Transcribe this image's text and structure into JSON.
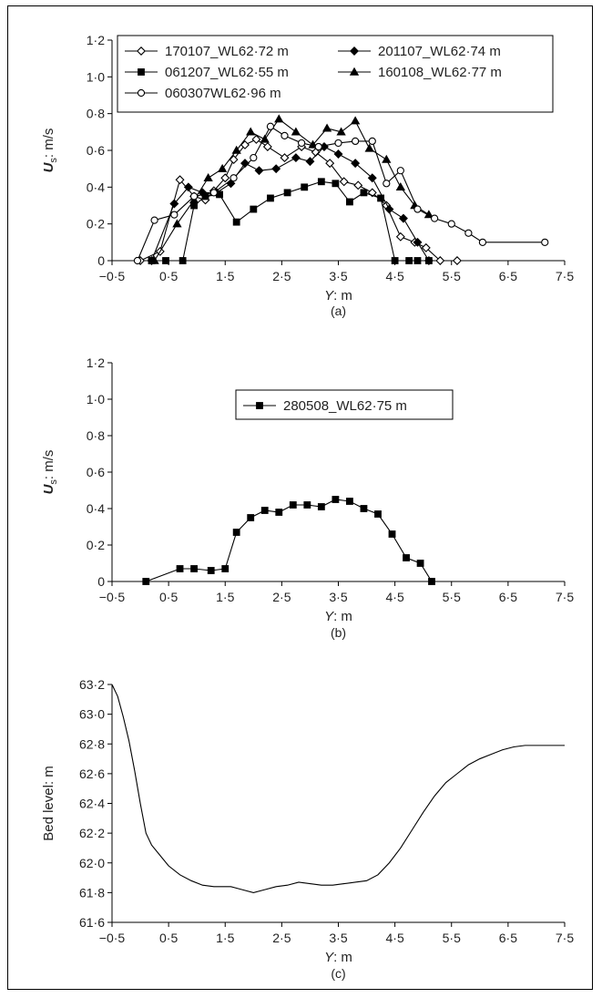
{
  "panels": [
    {
      "caption": "(a)",
      "xlabel": "Y: m",
      "ylabel": "U_s: m/s",
      "y_ticks": [
        "0",
        "0·2",
        "0·4",
        "0·6",
        "0·8",
        "1·0",
        "1·2"
      ],
      "x_ticks": [
        "−0·5",
        "0·5",
        "1·5",
        "2·5",
        "3·5",
        "4·5",
        "5·5",
        "6·5",
        "7·5"
      ]
    },
    {
      "caption": "(b)",
      "xlabel": "Y: m",
      "ylabel": "U_s: m/s",
      "y_ticks": [
        "0",
        "0·2",
        "0·4",
        "0·6",
        "0·8",
        "1·0",
        "1·2"
      ],
      "x_ticks": [
        "−0·5",
        "0·5",
        "1·5",
        "2·5",
        "3·5",
        "4·5",
        "5·5",
        "6·5",
        "7·5"
      ]
    },
    {
      "caption": "(c)",
      "xlabel": "Y: m",
      "ylabel": "Bed level: m",
      "y_ticks": [
        "61·6",
        "61·8",
        "62·0",
        "62·2",
        "62·4",
        "62·6",
        "62·8",
        "63·0",
        "63·2"
      ],
      "x_ticks": [
        "−0·5",
        "0·5",
        "1·5",
        "2·5",
        "3·5",
        "4·5",
        "5·5",
        "6·5",
        "7·5"
      ]
    }
  ],
  "chart_data": [
    {
      "type": "line",
      "xlim": [
        -0.5,
        7.5
      ],
      "ylim": [
        0,
        1.2
      ],
      "legend_position": "top",
      "series": [
        {
          "name": "170107_WL62·72 m",
          "marker": "diamond-open",
          "color": "#000000",
          "x": [
            0.0,
            0.35,
            0.7,
            0.95,
            1.15,
            1.3,
            1.5,
            1.65,
            1.85,
            2.05,
            2.25,
            2.55,
            2.85,
            3.1,
            3.35,
            3.6,
            3.85,
            4.1,
            4.35,
            4.6,
            4.85,
            5.05,
            5.3,
            5.6
          ],
          "y": [
            0.0,
            0.05,
            0.44,
            0.35,
            0.33,
            0.38,
            0.45,
            0.55,
            0.63,
            0.66,
            0.62,
            0.56,
            0.62,
            0.59,
            0.53,
            0.43,
            0.41,
            0.37,
            0.3,
            0.13,
            0.1,
            0.07,
            0.0,
            0.0
          ]
        },
        {
          "name": "201107_WL62·74 m",
          "marker": "diamond-filled",
          "color": "#000000",
          "x": [
            0.2,
            0.6,
            0.85,
            1.1,
            1.35,
            1.6,
            1.85,
            2.1,
            2.4,
            2.75,
            3.0,
            3.25,
            3.5,
            3.8,
            4.1,
            4.4,
            4.65,
            4.9,
            5.1
          ],
          "y": [
            0.0,
            0.31,
            0.4,
            0.37,
            0.37,
            0.42,
            0.53,
            0.49,
            0.5,
            0.56,
            0.54,
            0.62,
            0.58,
            0.53,
            0.45,
            0.28,
            0.23,
            0.1,
            0.0
          ]
        },
        {
          "name": "061207_WL62·55 m",
          "marker": "square-filled",
          "color": "#000000",
          "x": [
            0.2,
            0.45,
            0.75,
            0.95,
            1.15,
            1.4,
            1.7,
            2.0,
            2.3,
            2.6,
            2.9,
            3.2,
            3.45,
            3.7,
            3.95,
            4.25,
            4.5,
            4.75,
            4.9,
            5.1
          ],
          "y": [
            0.0,
            0.0,
            0.0,
            0.3,
            0.35,
            0.36,
            0.21,
            0.28,
            0.34,
            0.37,
            0.4,
            0.43,
            0.42,
            0.32,
            0.37,
            0.34,
            0.0,
            0.0,
            0.0,
            0.0
          ]
        },
        {
          "name": "160108_WL62·77 m",
          "marker": "triangle-filled",
          "color": "#000000",
          "x": [
            0.25,
            0.65,
            0.95,
            1.2,
            1.45,
            1.7,
            1.95,
            2.2,
            2.45,
            2.75,
            3.05,
            3.3,
            3.55,
            3.8,
            4.05,
            4.35,
            4.6,
            4.85,
            5.1
          ],
          "y": [
            0.0,
            0.2,
            0.33,
            0.45,
            0.5,
            0.6,
            0.7,
            0.66,
            0.77,
            0.7,
            0.63,
            0.72,
            0.7,
            0.76,
            0.61,
            0.55,
            0.4,
            0.3,
            0.25
          ]
        },
        {
          "name": "060307WL62·96 m",
          "marker": "circle-open",
          "color": "#000000",
          "x": [
            -0.05,
            0.25,
            0.6,
            0.95,
            1.3,
            1.65,
            2.0,
            2.3,
            2.55,
            2.85,
            3.15,
            3.5,
            3.8,
            4.1,
            4.35,
            4.6,
            4.9,
            5.2,
            5.5,
            5.8,
            6.05,
            7.15
          ],
          "y": [
            0.0,
            0.22,
            0.25,
            0.35,
            0.37,
            0.45,
            0.56,
            0.73,
            0.68,
            0.64,
            0.62,
            0.64,
            0.65,
            0.65,
            0.42,
            0.49,
            0.28,
            0.23,
            0.2,
            0.15,
            0.1,
            0.1
          ]
        }
      ]
    },
    {
      "type": "line",
      "xlim": [
        -0.5,
        7.5
      ],
      "ylim": [
        0,
        1.2
      ],
      "legend_position": "top",
      "series": [
        {
          "name": "280508_WL62·75 m",
          "marker": "square-filled",
          "color": "#000000",
          "x": [
            0.1,
            0.7,
            0.95,
            1.25,
            1.5,
            1.7,
            1.95,
            2.2,
            2.45,
            2.7,
            2.95,
            3.2,
            3.45,
            3.7,
            3.95,
            4.2,
            4.45,
            4.7,
            4.95,
            5.15
          ],
          "y": [
            0.0,
            0.07,
            0.07,
            0.06,
            0.07,
            0.27,
            0.35,
            0.39,
            0.38,
            0.42,
            0.42,
            0.41,
            0.45,
            0.44,
            0.4,
            0.37,
            0.26,
            0.13,
            0.1,
            0.0
          ]
        }
      ]
    },
    {
      "type": "line",
      "xlim": [
        -0.5,
        7.5
      ],
      "ylim": [
        61.6,
        63.2
      ],
      "series": [
        {
          "name": "",
          "marker": "none",
          "color": "#000000",
          "x": [
            -0.5,
            -0.4,
            -0.3,
            -0.2,
            -0.1,
            0.0,
            0.1,
            0.2,
            0.35,
            0.5,
            0.7,
            0.9,
            1.1,
            1.3,
            1.6,
            1.8,
            2.0,
            2.2,
            2.4,
            2.6,
            2.8,
            3.0,
            3.2,
            3.4,
            3.6,
            3.8,
            4.0,
            4.2,
            4.4,
            4.6,
            4.8,
            5.0,
            5.2,
            5.4,
            5.6,
            5.8,
            6.0,
            6.2,
            6.4,
            6.6,
            6.8,
            7.0,
            7.5
          ],
          "y": [
            63.2,
            63.12,
            62.98,
            62.82,
            62.62,
            62.4,
            62.2,
            62.12,
            62.05,
            61.98,
            61.92,
            61.88,
            61.85,
            61.84,
            61.84,
            61.82,
            61.8,
            61.82,
            61.84,
            61.85,
            61.87,
            61.86,
            61.85,
            61.85,
            61.86,
            61.87,
            61.88,
            61.92,
            62.0,
            62.1,
            62.22,
            62.34,
            62.45,
            62.54,
            62.6,
            62.66,
            62.7,
            62.73,
            62.76,
            62.78,
            62.79,
            62.79,
            62.79
          ]
        }
      ]
    }
  ]
}
